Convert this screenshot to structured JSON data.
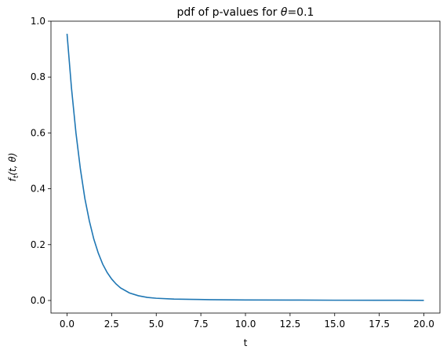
{
  "chart_data": {
    "type": "line",
    "title_prefix": "pdf of p-values for ",
    "title_symbol": "θ",
    "title_suffix": "=0.1",
    "xlabel": "t",
    "ylabel_f": "f",
    "ylabel_sub": "t",
    "ylabel_args": "(t, θ)",
    "xlim": [
      -0.9,
      20.9
    ],
    "ylim": [
      -0.045,
      1.0
    ],
    "xticks": [
      0.0,
      2.5,
      5.0,
      7.5,
      10.0,
      12.5,
      15.0,
      17.5,
      20.0
    ],
    "xtick_labels": [
      "0.0",
      "2.5",
      "5.0",
      "7.5",
      "10.0",
      "12.5",
      "15.0",
      "17.5",
      "20.0"
    ],
    "yticks": [
      0.0,
      0.2,
      0.4,
      0.6,
      0.8,
      1.0
    ],
    "ytick_labels": [
      "0.0",
      "0.2",
      "0.4",
      "0.6",
      "0.8",
      "1.0"
    ],
    "grid": false,
    "series": [
      {
        "color": "#1f77b4",
        "x": [
          0.0,
          0.25,
          0.5,
          0.75,
          1.0,
          1.25,
          1.5,
          1.75,
          2.0,
          2.25,
          2.5,
          2.75,
          3.0,
          3.5,
          4.0,
          4.5,
          5.0,
          6.0,
          7.0,
          8.0,
          10.0,
          12.5,
          15.0,
          17.5,
          20.0
        ],
        "y": [
          0.955,
          0.76,
          0.6,
          0.47,
          0.365,
          0.285,
          0.22,
          0.17,
          0.13,
          0.1,
          0.077,
          0.059,
          0.045,
          0.027,
          0.017,
          0.011,
          0.008,
          0.005,
          0.004,
          0.003,
          0.002,
          0.0015,
          0.001,
          0.0008,
          0.0006
        ]
      }
    ]
  }
}
